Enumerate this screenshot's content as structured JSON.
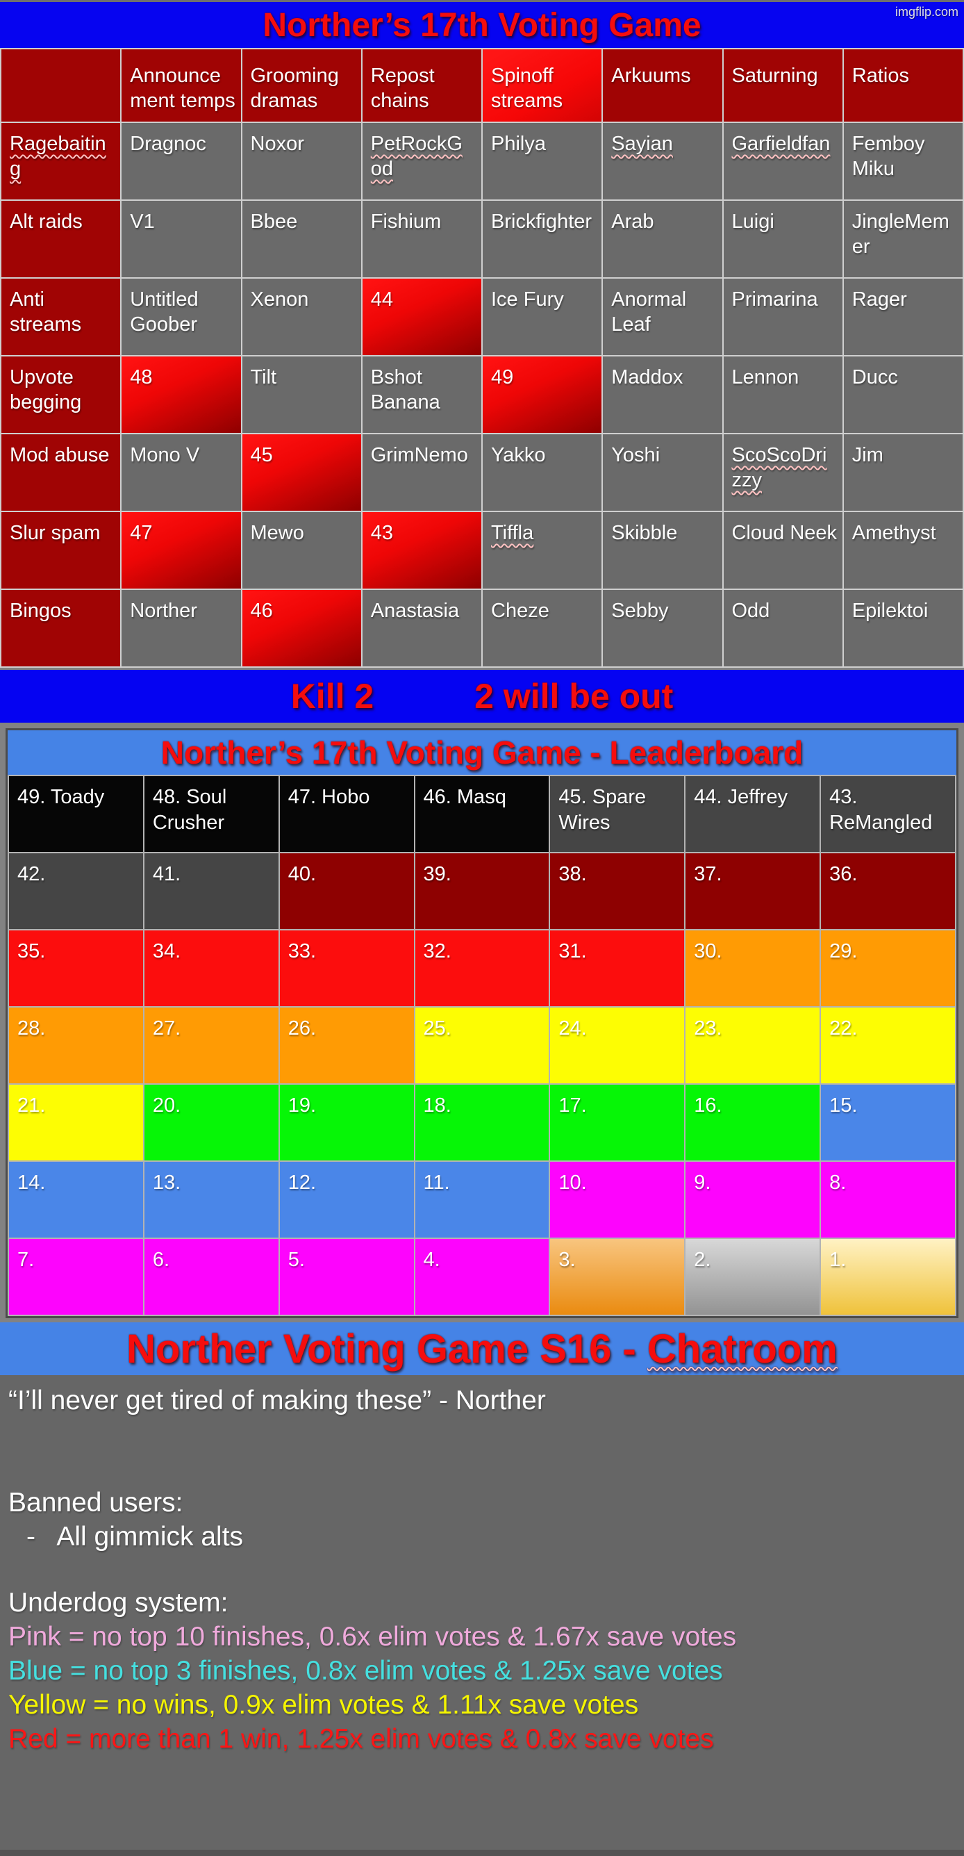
{
  "watermark": "imgflip.com",
  "colors": {
    "accent_blue_bar": "#0604f0",
    "accent_header_blue": "#4583e6",
    "title_red": "#f50d0d",
    "table_header_red": "#a00404",
    "cell_gray": "#6a6a6a",
    "eliminated_red": "#ee0606",
    "plum_text": "#e3a3de",
    "cyan_text": "#3bd9d9",
    "yellow_text": "#ecec04"
  },
  "main_table": {
    "title": "Norther’s 17th Voting Game",
    "columns": [
      {
        "label": "Announce\nment temps"
      },
      {
        "label": "Grooming dramas"
      },
      {
        "label": "Repost chains"
      },
      {
        "label": "Spinoff streams",
        "highlight": true
      },
      {
        "label": "Arkuums"
      },
      {
        "label": "Saturning"
      },
      {
        "label": "Ratios"
      }
    ],
    "rows": [
      {
        "header": "Ragebaitin\ng",
        "misspelled": true,
        "cells": [
          {
            "t": "Dragnoc",
            "c": "plum"
          },
          {
            "t": "Noxor",
            "c": "plum"
          },
          {
            "t": "PetRockG\nod",
            "c": "plum",
            "u": true
          },
          {
            "t": "Philya",
            "c": "cyan"
          },
          {
            "t": "Sayian",
            "c": "plum",
            "u": true
          },
          {
            "t": "Garfieldfan",
            "c": "plum",
            "u": true
          },
          {
            "t": "Femboy Miku",
            "c": "plum"
          }
        ]
      },
      {
        "header": "Alt raids",
        "cells": [
          {
            "t": "V1",
            "c": "white"
          },
          {
            "t": "Bbee",
            "c": "plum"
          },
          {
            "t": "Fishium",
            "c": "plum"
          },
          {
            "t": "Brickfighter",
            "c": "plum"
          },
          {
            "t": "Arab",
            "c": "yellow"
          },
          {
            "t": "Luigi",
            "c": "plum"
          },
          {
            "t": "JingleMem\ner",
            "c": "plum"
          }
        ]
      },
      {
        "header": "Anti streams",
        "cells": [
          {
            "t": "Untitled Goober",
            "c": "plum"
          },
          {
            "t": "Xenon",
            "c": "plum"
          },
          {
            "t": "44",
            "c": "white",
            "bg": "red"
          },
          {
            "t": "Ice Fury",
            "c": "plum"
          },
          {
            "t": "Anormal Leaf",
            "c": "plum"
          },
          {
            "t": "Primarina",
            "c": "plum"
          },
          {
            "t": "Rager",
            "c": "cyan"
          }
        ]
      },
      {
        "header": "Upvote begging",
        "cells": [
          {
            "t": "48",
            "c": "white",
            "bg": "red"
          },
          {
            "t": "Tilt",
            "c": "plum"
          },
          {
            "t": "Bshot Banana",
            "c": "plum"
          },
          {
            "t": "49",
            "c": "white",
            "bg": "red"
          },
          {
            "t": "Maddox",
            "c": "cyan"
          },
          {
            "t": "Lennon",
            "c": "white"
          },
          {
            "t": "Ducc",
            "c": "white"
          }
        ]
      },
      {
        "header": "Mod abuse",
        "cells": [
          {
            "t": "Mono V",
            "c": "plum"
          },
          {
            "t": "45",
            "c": "white",
            "bg": "red"
          },
          {
            "t": "GrimNemo",
            "c": "plum"
          },
          {
            "t": "Yakko",
            "c": "yellow"
          },
          {
            "t": "Yoshi",
            "c": "red"
          },
          {
            "t": "ScoScoDri\nzzy",
            "c": "plum",
            "u": true
          },
          {
            "t": "Jim",
            "c": "cyan"
          }
        ]
      },
      {
        "header": "Slur spam",
        "cells": [
          {
            "t": "47",
            "c": "white",
            "bg": "red"
          },
          {
            "t": "Mewo",
            "c": "white"
          },
          {
            "t": "43",
            "c": "white",
            "bg": "red"
          },
          {
            "t": "Tiffla",
            "c": "white",
            "u": true
          },
          {
            "t": "Skibble",
            "c": "cyan"
          },
          {
            "t": "Cloud Neek",
            "c": "plum"
          },
          {
            "t": "Amethyst",
            "c": "plum"
          }
        ]
      },
      {
        "header": "Bingos",
        "cells": [
          {
            "t": "Norther",
            "c": "red"
          },
          {
            "t": "46",
            "c": "white",
            "bg": "red"
          },
          {
            "t": "Anastasia",
            "c": "plum"
          },
          {
            "t": "Cheze",
            "c": "white"
          },
          {
            "t": "Sebby",
            "c": "plum"
          },
          {
            "t": "Odd",
            "c": "yellow"
          },
          {
            "t": "Epilektoi",
            "c": "plum"
          }
        ]
      }
    ]
  },
  "kill_bar": {
    "left": "Kill 2",
    "right": "2 will be out"
  },
  "leaderboard": {
    "title": "Norther’s 17th Voting Game - Leaderboard",
    "rows": [
      [
        {
          "label": "49. Toady",
          "bg": "black"
        },
        {
          "label": "48. Soul Crusher",
          "bg": "black"
        },
        {
          "label": "47. Hobo",
          "bg": "black"
        },
        {
          "label": "46. Masq",
          "bg": "black"
        },
        {
          "label": "45. Spare Wires",
          "bg": "dgray"
        },
        {
          "label": "44. Jeffrey",
          "bg": "dgray"
        },
        {
          "label": "43.\nReMangled",
          "bg": "dgray"
        }
      ],
      [
        {
          "label": "42.",
          "bg": "dgray"
        },
        {
          "label": "41.",
          "bg": "dgray"
        },
        {
          "label": "40.",
          "bg": "dred"
        },
        {
          "label": "39.",
          "bg": "dred"
        },
        {
          "label": "38.",
          "bg": "dred"
        },
        {
          "label": "37.",
          "bg": "dred"
        },
        {
          "label": "36.",
          "bg": "dred"
        }
      ],
      [
        {
          "label": "35.",
          "bg": "lred"
        },
        {
          "label": "34.",
          "bg": "lred"
        },
        {
          "label": "33.",
          "bg": "lred"
        },
        {
          "label": "32.",
          "bg": "lred"
        },
        {
          "label": "31.",
          "bg": "lred"
        },
        {
          "label": "30.",
          "bg": "orange"
        },
        {
          "label": "29.",
          "bg": "orange"
        }
      ],
      [
        {
          "label": "28.",
          "bg": "orange"
        },
        {
          "label": "27.",
          "bg": "orange"
        },
        {
          "label": "26.",
          "bg": "orange"
        },
        {
          "label": "25.",
          "bg": "yellow"
        },
        {
          "label": "24.",
          "bg": "yellow"
        },
        {
          "label": "23.",
          "bg": "yellow"
        },
        {
          "label": "22.",
          "bg": "yellow"
        }
      ],
      [
        {
          "label": "21.",
          "bg": "yellow"
        },
        {
          "label": "20.",
          "bg": "green"
        },
        {
          "label": "19.",
          "bg": "green"
        },
        {
          "label": "18.",
          "bg": "green"
        },
        {
          "label": "17.",
          "bg": "green"
        },
        {
          "label": "16.",
          "bg": "green"
        },
        {
          "label": "15.",
          "bg": "blue"
        }
      ],
      [
        {
          "label": "14.",
          "bg": "blue"
        },
        {
          "label": "13.",
          "bg": "blue"
        },
        {
          "label": "12.",
          "bg": "blue"
        },
        {
          "label": "11.",
          "bg": "blue"
        },
        {
          "label": "10.",
          "bg": "magenta"
        },
        {
          "label": "9.",
          "bg": "magenta"
        },
        {
          "label": "8.",
          "bg": "magenta"
        }
      ],
      [
        {
          "label": "7.",
          "bg": "magenta"
        },
        {
          "label": "6.",
          "bg": "magenta"
        },
        {
          "label": "5.",
          "bg": "magenta"
        },
        {
          "label": "4.",
          "bg": "magenta"
        },
        {
          "label": "3.",
          "bg": "bronze"
        },
        {
          "label": "2.",
          "bg": "silver"
        },
        {
          "label": "1.",
          "bg": "gold"
        }
      ]
    ]
  },
  "chatroom": {
    "title_prefix": "Norther Voting Game S16 - ",
    "title_misspelled": "Chatroom",
    "quote": "“I’ll never get tired of making these” - Norther",
    "banned_header": "Banned users:",
    "banned_items": [
      "-   All gimmick alts"
    ],
    "underdog_header": "Underdog system:",
    "underdog_rules": [
      {
        "text": "Pink = no top 10 finishes, 0.6x elim votes & 1.67x save votes",
        "color": "#f0aadc"
      },
      {
        "text": "Blue = no top 3 finishes, 0.8x elim votes & 1.25x save votes",
        "color": "#45e0e0"
      },
      {
        "text": "Yellow = no wins, 0.9x elim votes & 1.11x save votes",
        "color": "#f5f500"
      },
      {
        "text": "Red = more than 1 win, 1.25x elim votes & 0.8x save votes",
        "color": "#fb1515"
      }
    ]
  }
}
